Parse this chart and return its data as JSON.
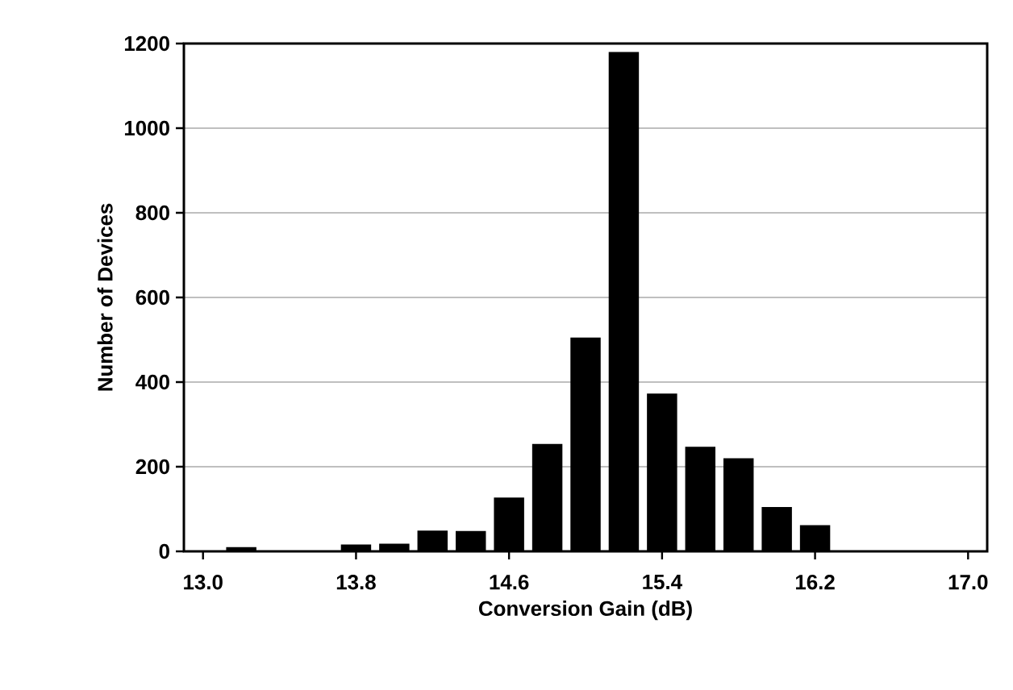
{
  "chart_data": {
    "type": "bar",
    "xlabel": "Conversion Gain (dB)",
    "ylabel": "Number of Devices",
    "x": [
      13.0,
      13.2,
      13.4,
      13.6,
      13.8,
      14.0,
      14.2,
      14.4,
      14.6,
      14.8,
      15.0,
      15.2,
      15.4,
      15.6,
      15.8,
      16.0,
      16.2,
      16.4,
      16.6,
      16.8,
      17.0
    ],
    "values": [
      0,
      10,
      0,
      0,
      16,
      18,
      49,
      48,
      127,
      254,
      505,
      1180,
      373,
      247,
      220,
      105,
      62,
      0,
      0,
      0,
      0
    ],
    "color": "#000000",
    "xlim": [
      12.9,
      17.1
    ],
    "xticks": [
      {
        "value": 13.0,
        "label": "13.0"
      },
      {
        "value": 13.8,
        "label": "13.8"
      },
      {
        "value": 14.6,
        "label": "14.6"
      },
      {
        "value": 15.4,
        "label": "15.4"
      },
      {
        "value": 16.2,
        "label": "16.2"
      },
      {
        "value": 17.0,
        "label": "17.0"
      }
    ],
    "ylim": [
      0,
      1200
    ],
    "yticks": [
      0,
      200,
      400,
      600,
      800,
      1000,
      1200
    ],
    "grid": "y"
  }
}
